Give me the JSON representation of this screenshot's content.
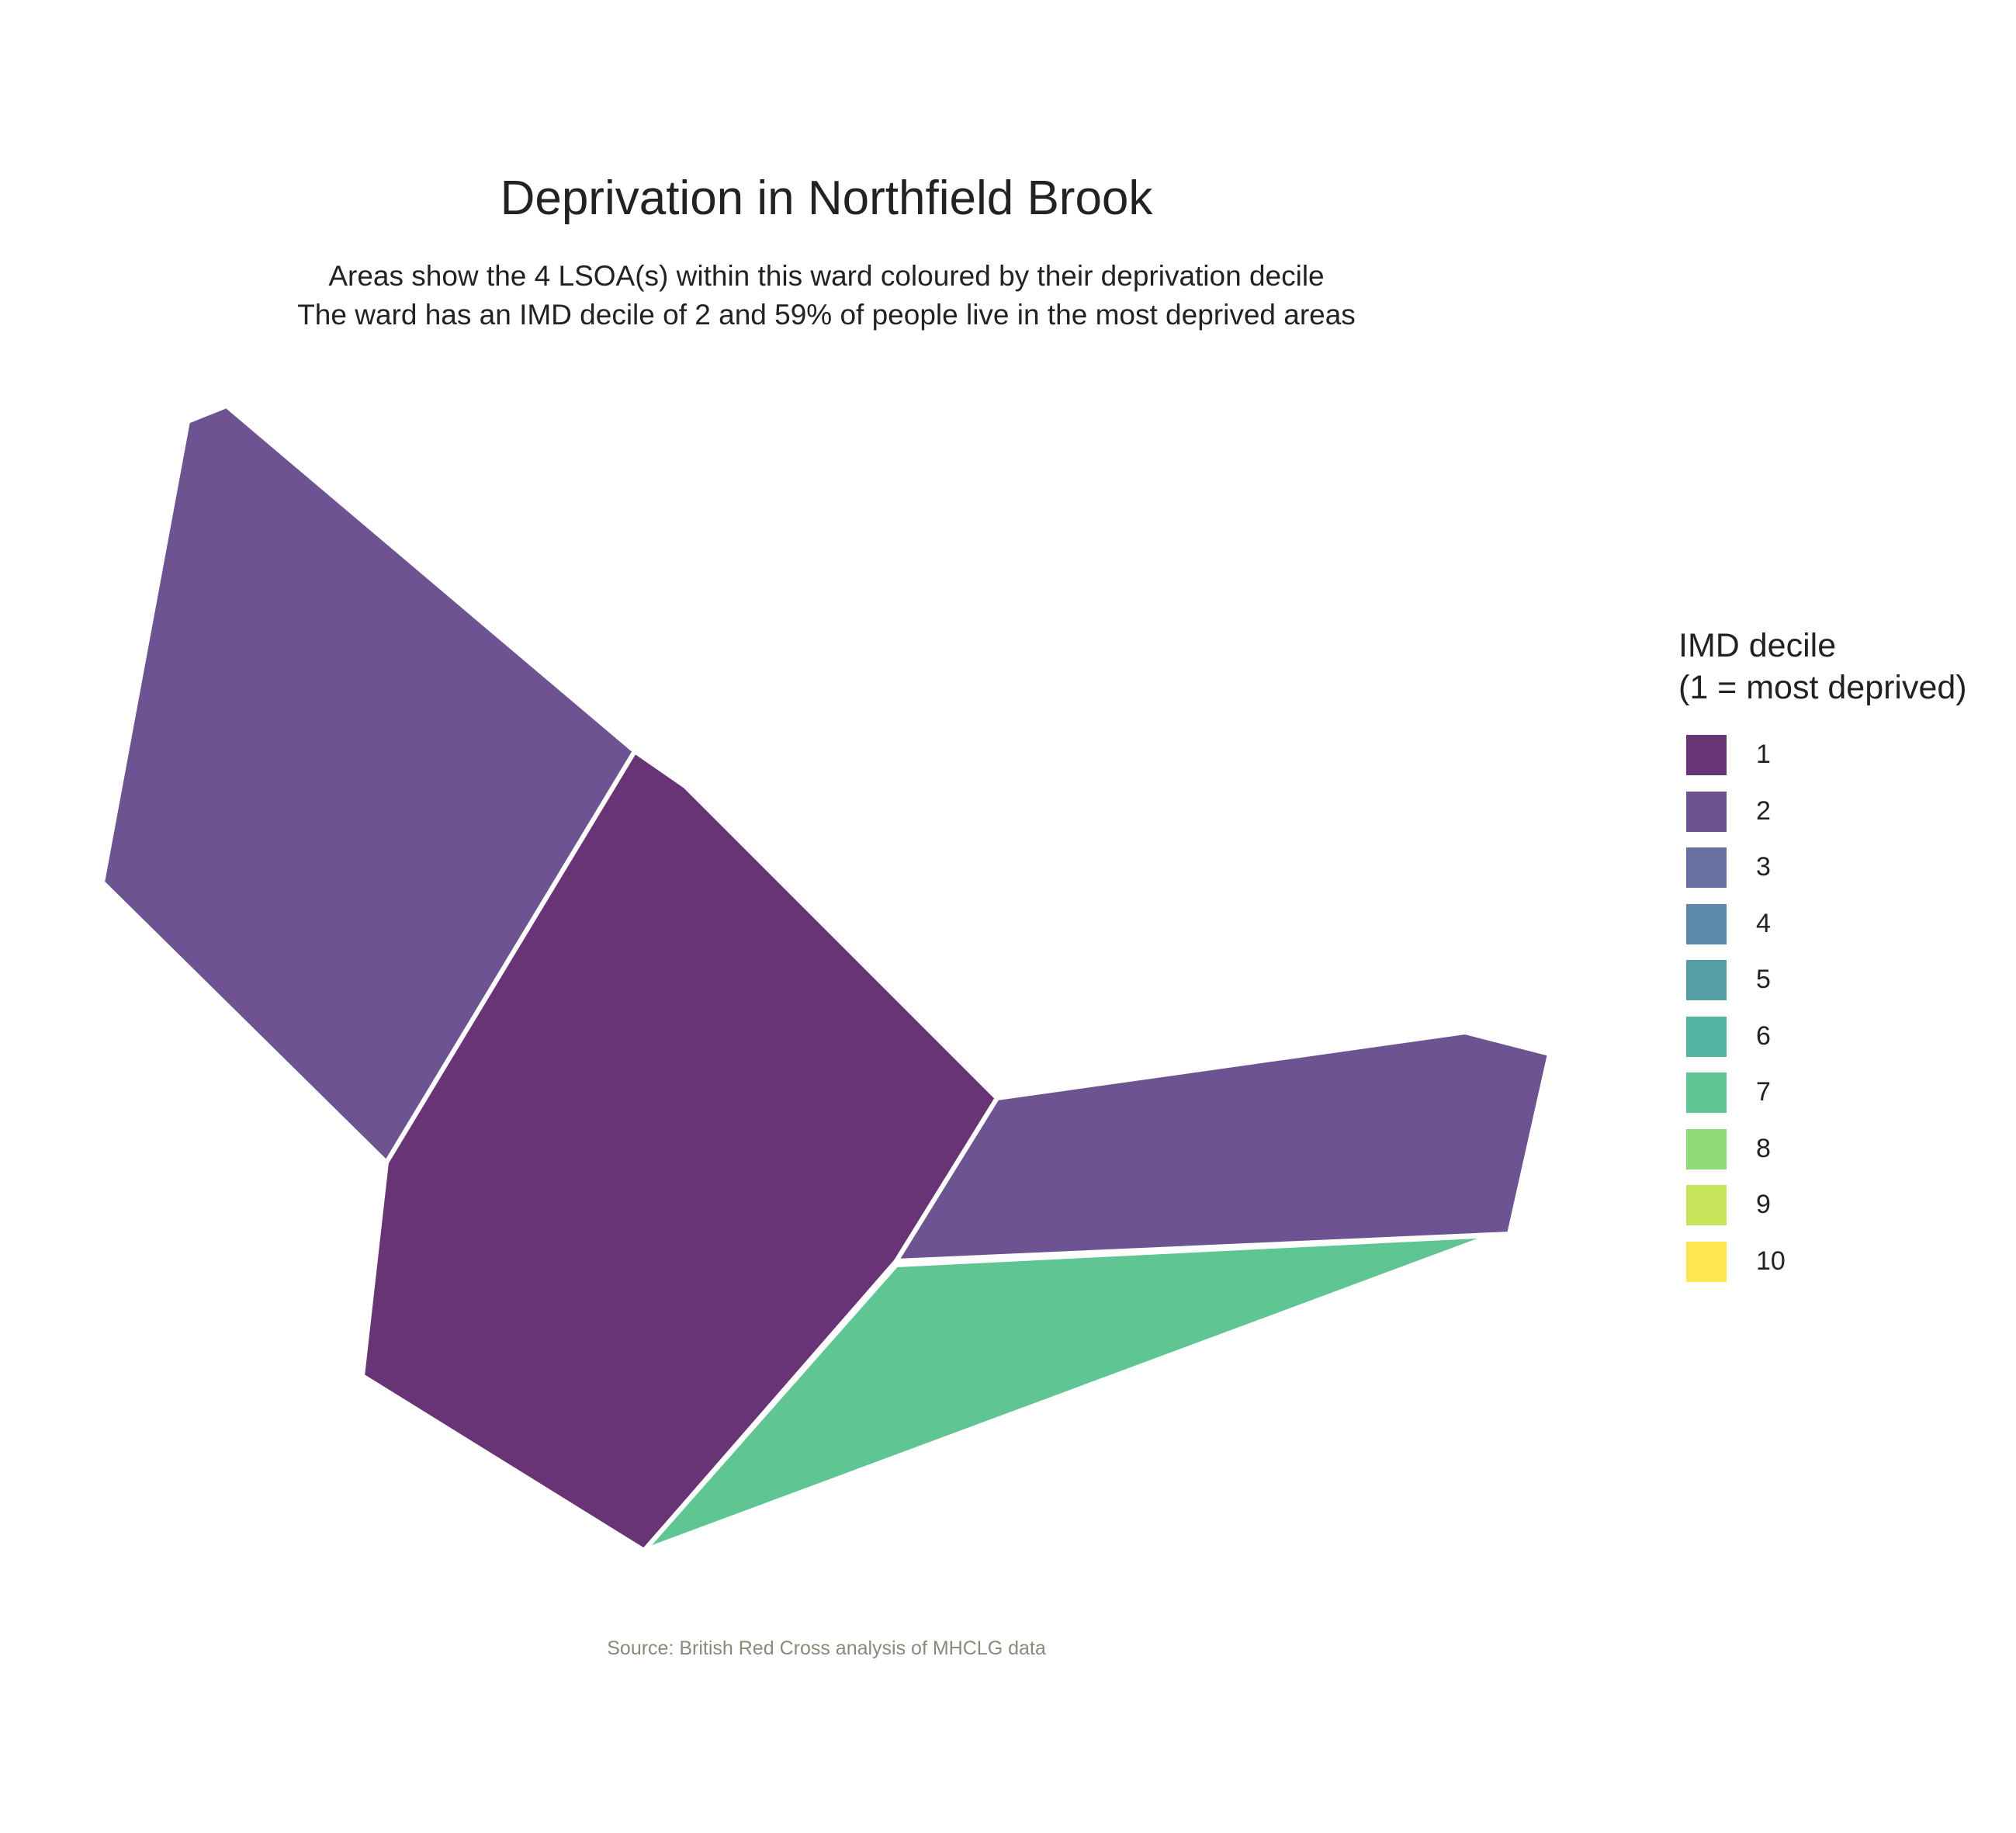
{
  "title": "Deprivation in Northfield Brook",
  "subtitle_line1": "Areas show the 4 LSOA(s) within this ward coloured by their deprivation decile",
  "subtitle_line2": "The ward has an IMD decile of 2 and 59% of people live in the most deprived areas",
  "legend": {
    "title_line1": "IMD decile",
    "title_line2": "(1 = most deprived)",
    "items": [
      {
        "label": "1",
        "color": "#693476"
      },
      {
        "label": "2",
        "color": "#6e5393"
      },
      {
        "label": "3",
        "color": "#6770a0"
      },
      {
        "label": "4",
        "color": "#5b89a8"
      },
      {
        "label": "5",
        "color": "#549ea6"
      },
      {
        "label": "6",
        "color": "#52b4a1"
      },
      {
        "label": "7",
        "color": "#5fc592"
      },
      {
        "label": "8",
        "color": "#90d878"
      },
      {
        "label": "9",
        "color": "#c7e359"
      },
      {
        "label": "10",
        "color": "#fde650"
      }
    ]
  },
  "areas": [
    {
      "name": "north-west",
      "decile": 2,
      "color": "#6e5393"
    },
    {
      "name": "central",
      "decile": 1,
      "color": "#693476"
    },
    {
      "name": "east",
      "decile": 2,
      "color": "#6e5393"
    },
    {
      "name": "south-east",
      "decile": 7,
      "color": "#5fc592"
    }
  ],
  "source": "Source: British Red Cross analysis of MHCLG data"
}
